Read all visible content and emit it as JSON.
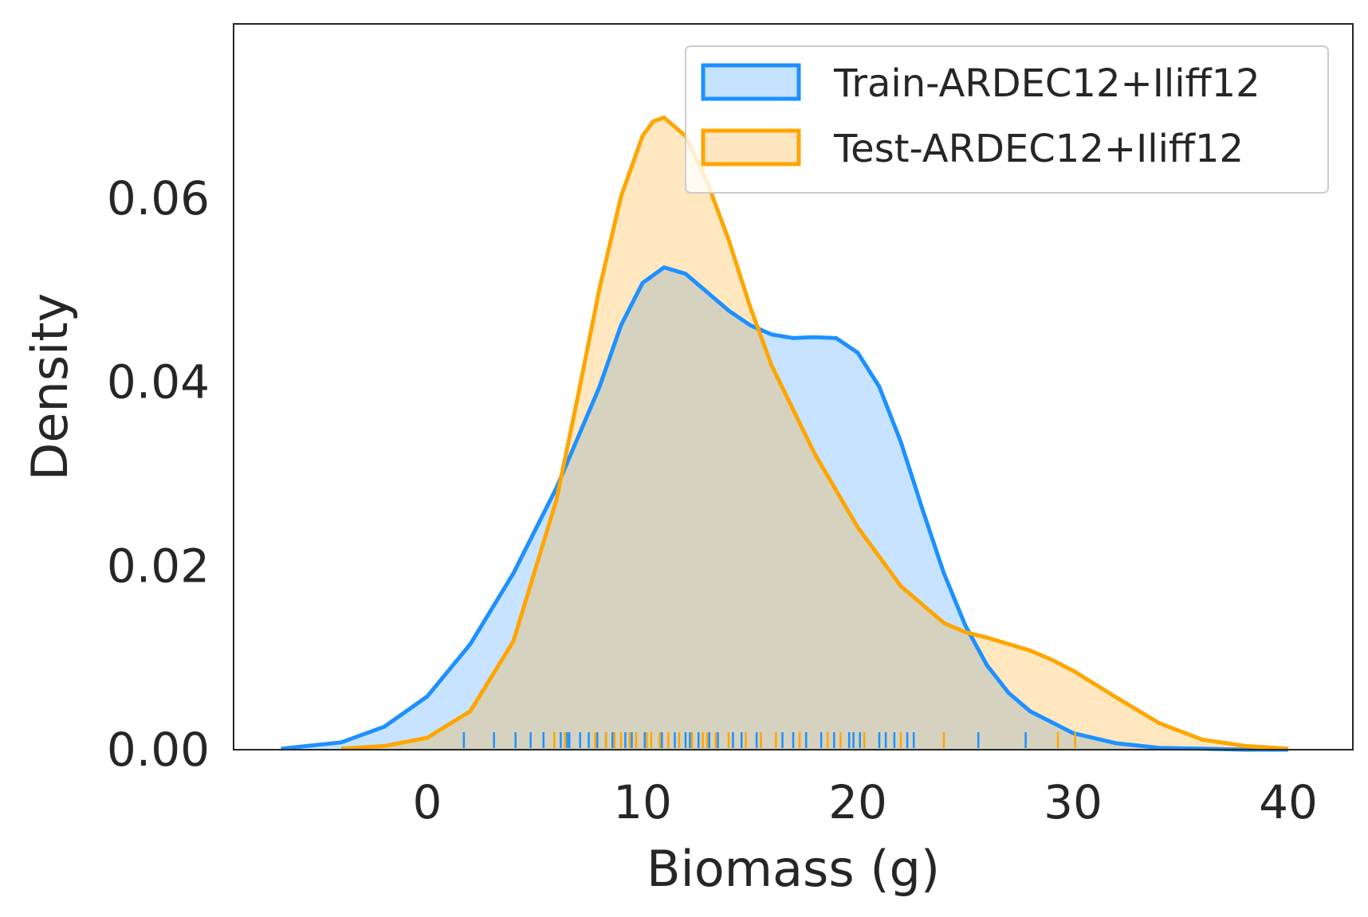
{
  "chart_data": {
    "type": "area",
    "xlabel": "Biomass (g)",
    "ylabel": "Density",
    "xlim": [
      -9,
      43
    ],
    "ylim": [
      0,
      0.079
    ],
    "x_ticks": [
      0,
      10,
      20,
      30,
      40
    ],
    "x_tick_labels": [
      "0",
      "10",
      "20",
      "30",
      "40"
    ],
    "y_ticks": [
      0,
      0.02,
      0.04,
      0.06
    ],
    "y_tick_labels": [
      "0.00",
      "0.02",
      "0.04",
      "0.06"
    ],
    "grid": false,
    "legend_position": "top-right",
    "series": [
      {
        "name": "Train-ARDEC12+Iliff12",
        "color": "#1e90ff",
        "fill": "#c4e1fd",
        "x": [
          -6.8,
          -4,
          -2,
          0,
          2,
          4,
          6,
          8,
          9,
          10,
          11,
          12,
          13,
          14,
          15,
          16,
          17,
          18,
          19,
          20,
          21,
          22,
          23,
          24,
          25,
          26,
          27,
          28,
          30,
          32,
          34,
          36,
          38,
          40
        ],
        "y": [
          0.0001,
          0.0008,
          0.0025,
          0.0058,
          0.0115,
          0.0192,
          0.0285,
          0.0395,
          0.0462,
          0.0508,
          0.0525,
          0.0518,
          0.0498,
          0.0478,
          0.0462,
          0.0452,
          0.0448,
          0.0449,
          0.0448,
          0.0432,
          0.0395,
          0.0335,
          0.0262,
          0.0192,
          0.0135,
          0.0092,
          0.0062,
          0.0042,
          0.0018,
          0.0007,
          0.0002,
          0.0001,
          0.0,
          0.0
        ],
        "rug": [
          1.7,
          3.1,
          4.1,
          4.8,
          5.4,
          6.2,
          6.5,
          6.6,
          7.1,
          7.5,
          7.9,
          8.3,
          8.6,
          9.2,
          9.5,
          10.1,
          10.9,
          11.5,
          12.0,
          12.2,
          12.6,
          13.1,
          13.5,
          14.2,
          14.6,
          15.3,
          16.5,
          17.0,
          17.6,
          18.3,
          18.9,
          19.6,
          19.8,
          20.1,
          21.0,
          21.3,
          21.7,
          22.3,
          22.6,
          25.6,
          27.8
        ]
      },
      {
        "name": "Test-ARDEC12+Iliff12",
        "color": "#ffa500",
        "fill": "#fde5bf",
        "x": [
          -4,
          -2,
          0,
          2,
          4,
          6,
          7,
          8,
          9,
          10,
          10.5,
          11,
          12,
          13,
          14,
          15,
          16,
          18,
          20,
          22,
          24,
          25,
          26,
          27,
          28,
          29,
          30,
          32,
          34,
          36,
          38,
          40
        ],
        "y": [
          0.0001,
          0.0004,
          0.0013,
          0.0042,
          0.0118,
          0.0272,
          0.0385,
          0.0502,
          0.0602,
          0.0668,
          0.0684,
          0.0688,
          0.0668,
          0.0618,
          0.0555,
          0.0482,
          0.0418,
          0.0322,
          0.0242,
          0.0178,
          0.0138,
          0.0128,
          0.0122,
          0.0115,
          0.0108,
          0.0098,
          0.0086,
          0.0057,
          0.0029,
          0.0011,
          0.0004,
          0.0001
        ],
        "rug": [
          5.9,
          6.4,
          7.8,
          8.3,
          8.7,
          9.0,
          9.4,
          9.7,
          10.2,
          10.4,
          10.8,
          11.2,
          11.7,
          12.3,
          12.8,
          13.0,
          13.4,
          14.0,
          14.8,
          15.5,
          16.2,
          17.3,
          18.6,
          19.2,
          20.3,
          22.0,
          24.0,
          29.3,
          30.1
        ]
      }
    ]
  }
}
